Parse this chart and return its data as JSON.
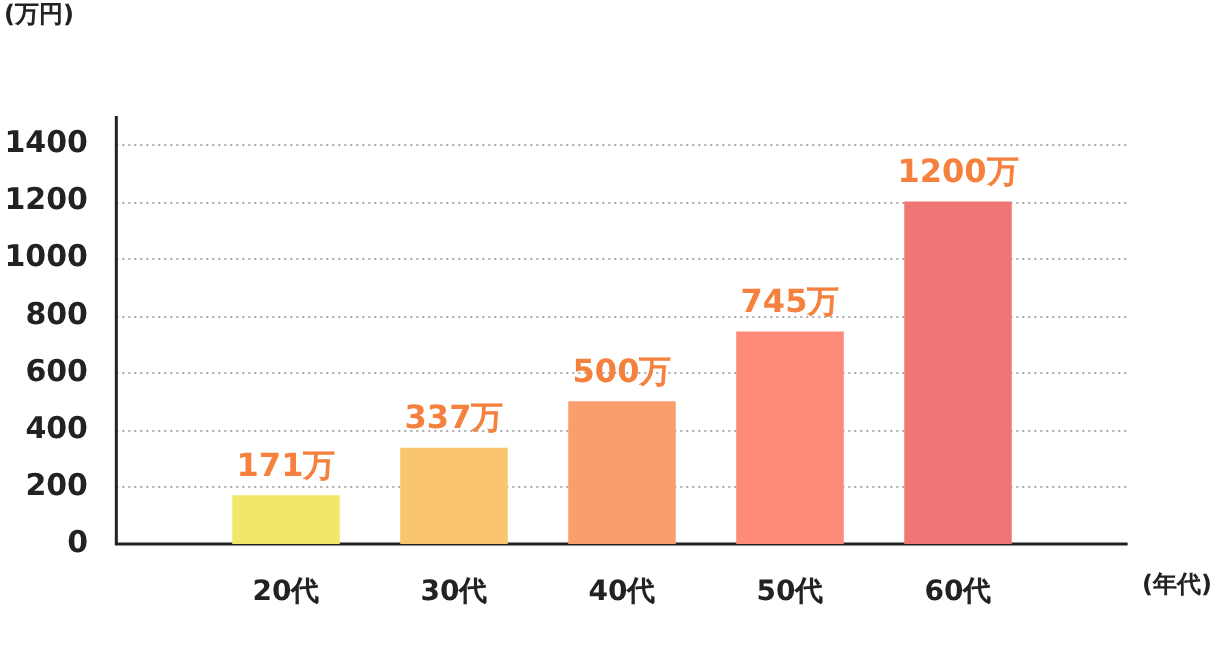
{
  "chart_data": {
    "type": "bar",
    "categories": [
      "20代",
      "30代",
      "40代",
      "50代",
      "60代"
    ],
    "values": [
      171,
      337,
      500,
      745,
      1200
    ],
    "colors": [
      "#f2e76a",
      "#f9c66f",
      "#fb9e6e",
      "#fd8b78",
      "#f07676"
    ],
    "value_labels": [
      "171万",
      "337万",
      "500万",
      "745万",
      "1200万"
    ],
    "ylabel": "(万円)",
    "xlabel": "(年代)",
    "ylim": [
      0,
      1500
    ],
    "yticks": [
      0,
      200,
      400,
      600,
      800,
      1000,
      1200,
      1400
    ],
    "grid": "y",
    "legend": false
  }
}
